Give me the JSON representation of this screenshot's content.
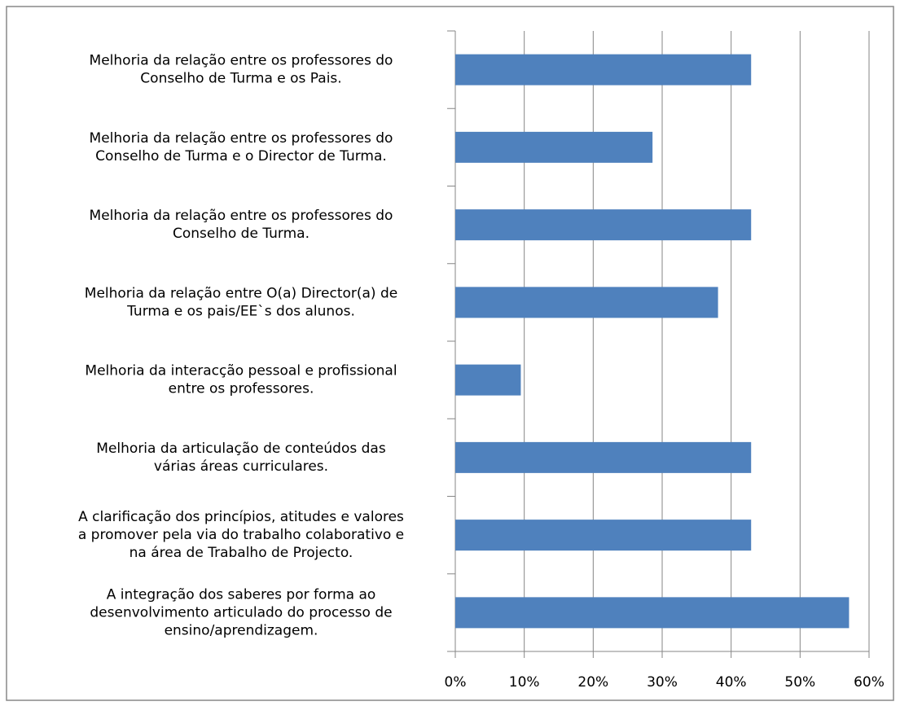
{
  "chart_data": {
    "type": "barh",
    "categories": [
      [
        "Melhoria da relação entre os professores do",
        "Conselho de Turma e os Pais."
      ],
      [
        "Melhoria da relação entre os professores do",
        "Conselho de Turma e o Director de Turma."
      ],
      [
        "Melhoria da relação entre os professores do",
        "Conselho de Turma."
      ],
      [
        "Melhoria da relação entre O(a) Director(a) de",
        "Turma e os pais/EE`s dos alunos."
      ],
      [
        "Melhoria da interacção pessoal e profissional",
        "entre os professores."
      ],
      [
        "Melhoria da articulação de conteúdos das",
        "várias áreas curriculares."
      ],
      [
        "A clarificação dos princípios, atitudes e valores",
        "a promover pela via do trabalho colaborativo e",
        "na área de Trabalho de Projecto."
      ],
      [
        "A integração dos saberes por forma ao",
        "desenvolvimento articulado do processo de",
        "ensino/aprendizagem."
      ]
    ],
    "values": [
      42.9,
      28.6,
      42.9,
      38.1,
      9.5,
      42.9,
      42.9,
      57.1
    ],
    "color": "#4f81bd",
    "xlim": [
      0,
      60
    ],
    "xticks": [
      {
        "value": 0,
        "label": "0%"
      },
      {
        "value": 10,
        "label": "10%"
      },
      {
        "value": 20,
        "label": "20%"
      },
      {
        "value": 30,
        "label": "30%"
      },
      {
        "value": 40,
        "label": "40%"
      },
      {
        "value": 50,
        "label": "50%"
      },
      {
        "value": 60,
        "label": "60%"
      }
    ],
    "grid": true
  }
}
